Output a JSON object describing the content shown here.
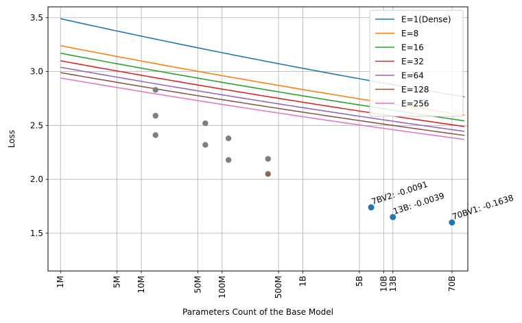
{
  "chart_data": {
    "type": "line",
    "xlabel": "Parameters Count of the Base Model",
    "ylabel": "Loss",
    "xscale": "log",
    "ylim": [
      1.15,
      3.6
    ],
    "xlim": [
      700000,
      110000000000
    ],
    "grid": true,
    "legend_position": "top-right",
    "x_ticks": [
      {
        "value": 1000000,
        "label": "1M"
      },
      {
        "value": 5000000,
        "label": "5M"
      },
      {
        "value": 10000000,
        "label": "10M"
      },
      {
        "value": 50000000,
        "label": "50M"
      },
      {
        "value": 100000000,
        "label": "100M"
      },
      {
        "value": 500000000,
        "label": "500M"
      },
      {
        "value": 1000000000,
        "label": "1B"
      },
      {
        "value": 5000000000,
        "label": "5B"
      },
      {
        "value": 10000000000,
        "label": "10B"
      },
      {
        "value": 13000000000,
        "label": "13B"
      },
      {
        "value": 70000000000,
        "label": "70B"
      }
    ],
    "y_ticks": [
      {
        "value": 1.5,
        "label": "1.5"
      },
      {
        "value": 2.0,
        "label": "2.0"
      },
      {
        "value": 2.5,
        "label": "2.5"
      },
      {
        "value": 3.0,
        "label": "3.0"
      },
      {
        "value": 3.5,
        "label": "3.5"
      }
    ],
    "curve_x_range": [
      1000000,
      100000000000
    ],
    "series": [
      {
        "name": "E=1(Dense)",
        "color": "#1f77b4",
        "a": 3.49,
        "b": 0.166,
        "c": 0.0042
      },
      {
        "name": "E=8",
        "color": "#ff7f0e",
        "a": 3.24,
        "b": 0.1455,
        "c": 0.0033
      },
      {
        "name": "E=16",
        "color": "#2ca02c",
        "a": 3.17,
        "b": 0.1415,
        "c": 0.0032
      },
      {
        "name": "E=32",
        "color": "#d62728",
        "a": 3.1,
        "b": 0.1375,
        "c": 0.0031
      },
      {
        "name": "E=64",
        "color": "#9467bd",
        "a": 3.04,
        "b": 0.134,
        "c": 0.003
      },
      {
        "name": "E=128",
        "color": "#8c564b",
        "a": 2.99,
        "b": 0.131,
        "c": 0.0029
      },
      {
        "name": "E=256",
        "color": "#e377c2",
        "a": 2.94,
        "b": 0.128,
        "c": 0.0028
      }
    ],
    "scatter_points": [
      {
        "x": 15000000,
        "y": 2.83,
        "color": "#7f7f7f"
      },
      {
        "x": 15000000,
        "y": 2.59,
        "color": "#7f7f7f"
      },
      {
        "x": 15000000,
        "y": 2.41,
        "color": "#7f7f7f"
      },
      {
        "x": 62000000,
        "y": 2.52,
        "color": "#7f7f7f"
      },
      {
        "x": 62000000,
        "y": 2.32,
        "color": "#7f7f7f"
      },
      {
        "x": 120000000,
        "y": 2.38,
        "color": "#7f7f7f"
      },
      {
        "x": 120000000,
        "y": 2.18,
        "color": "#7f7f7f"
      },
      {
        "x": 370000000,
        "y": 2.19,
        "color": "#7f7f7f"
      },
      {
        "x": 370000000,
        "y": 2.05,
        "color": "#8c6a50"
      }
    ],
    "highlight_points": [
      {
        "x": 7000000000,
        "y": 1.74,
        "label": "7BV2: -0.0091",
        "color": "#1f77b4"
      },
      {
        "x": 13000000000,
        "y": 1.65,
        "label": "13B: -0.0039",
        "color": "#1f77b4"
      },
      {
        "x": 70000000000,
        "y": 1.6,
        "label": "70BV1: -0.1638",
        "color": "#1f77b4"
      }
    ]
  }
}
